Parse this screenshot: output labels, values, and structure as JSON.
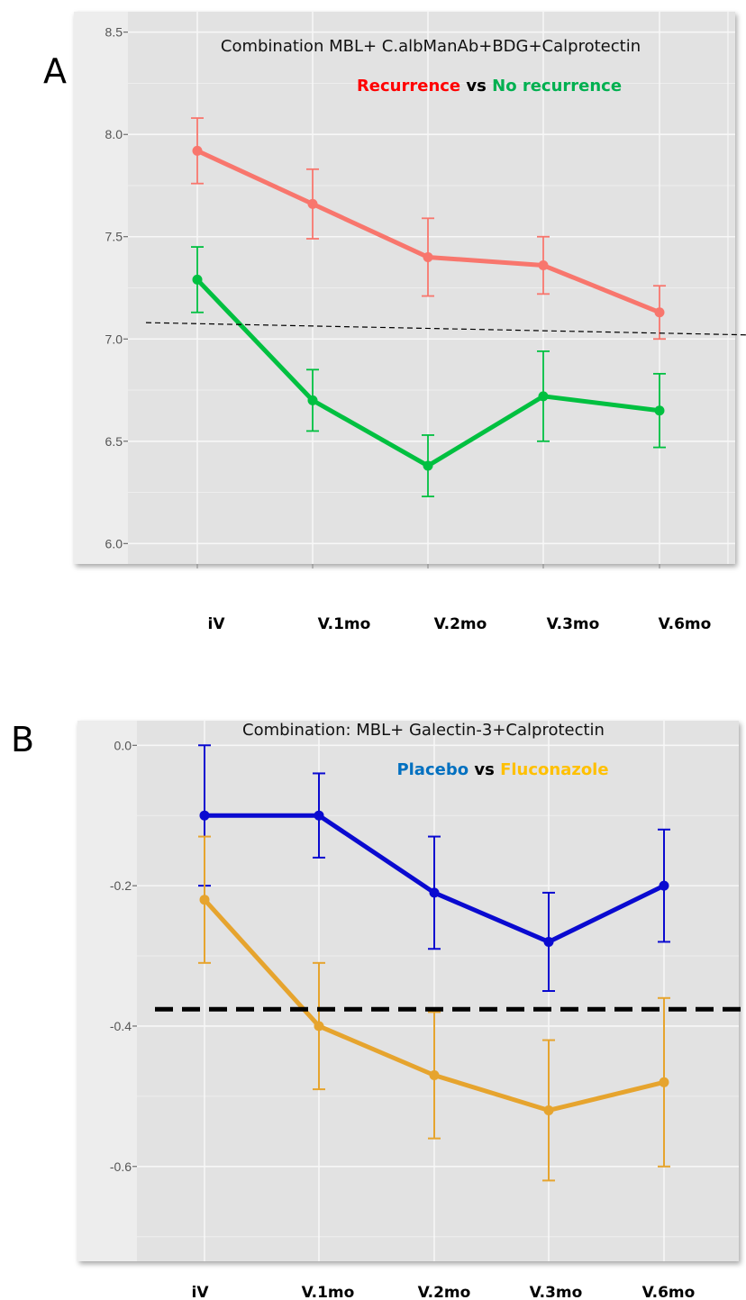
{
  "chart_data": [
    {
      "type": "line",
      "panel_label": "A",
      "title": "Combination MBL+ C.albManAb+BDG+Calprotectin",
      "legend_text": [
        {
          "text": "Recurrence",
          "color": "#ff0000"
        },
        {
          "text": " vs ",
          "color": "#000000"
        },
        {
          "text": "No recurrence",
          "color": "#00b050"
        }
      ],
      "categories": [
        "iV",
        "V.1mo",
        "V.2mo",
        "V.3mo",
        "V.6mo"
      ],
      "yticks": [
        "6.0",
        "6.5",
        "7.0",
        "7.5",
        "8.0",
        "8.5"
      ],
      "ylim": [
        5.9,
        8.6
      ],
      "grid": true,
      "series": [
        {
          "name": "Recurrence",
          "color": "#f8766d",
          "values": [
            7.92,
            7.66,
            7.4,
            7.36,
            7.13
          ],
          "err_low": [
            7.76,
            7.49,
            7.21,
            7.22,
            7.0
          ],
          "err_high": [
            8.08,
            7.83,
            7.59,
            7.5,
            7.26
          ]
        },
        {
          "name": "No recurrence",
          "color": "#00c040",
          "values": [
            7.29,
            6.7,
            6.38,
            6.72,
            6.65
          ],
          "err_low": [
            7.13,
            6.55,
            6.23,
            6.5,
            6.47
          ],
          "err_high": [
            7.45,
            6.85,
            6.53,
            6.94,
            6.83
          ]
        }
      ],
      "threshold_line": {
        "style": "thin-dashed",
        "y_start": 7.08,
        "y_end": 7.02
      }
    },
    {
      "type": "line",
      "panel_label": "B",
      "title": "Combination: MBL+ Galectin-3+Calprotectin",
      "legend_text": [
        {
          "text": "Placebo",
          "color": "#0070c0"
        },
        {
          "text": " vs ",
          "color": "#000000"
        },
        {
          "text": "Fluconazole",
          "color": "#ffc000"
        }
      ],
      "categories": [
        "iV",
        "V.1mo",
        "V.2mo",
        "V.3mo",
        "V.6mo"
      ],
      "yticks": [
        "0.0",
        "-0.2",
        "-0.4",
        "-0.6"
      ],
      "ylim": [
        -0.735,
        0.035
      ],
      "grid": true,
      "series": [
        {
          "name": "Placebo",
          "color": "#0a0ad0",
          "values": [
            -0.1,
            -0.1,
            -0.21,
            -0.28,
            -0.2
          ],
          "err_low": [
            -0.2,
            -0.16,
            -0.29,
            -0.35,
            -0.28
          ],
          "err_high": [
            0.0,
            -0.04,
            -0.13,
            -0.21,
            -0.12
          ]
        },
        {
          "name": "Fluconazole",
          "color": "#e6a42e",
          "values": [
            -0.22,
            -0.4,
            -0.47,
            -0.52,
            -0.48
          ],
          "err_low": [
            -0.31,
            -0.49,
            -0.56,
            -0.62,
            -0.6
          ],
          "err_high": [
            -0.13,
            -0.31,
            -0.38,
            -0.42,
            -0.36
          ]
        }
      ],
      "threshold_line": {
        "style": "thick-dashed",
        "y_start": -0.376,
        "y_end": -0.376
      }
    }
  ]
}
